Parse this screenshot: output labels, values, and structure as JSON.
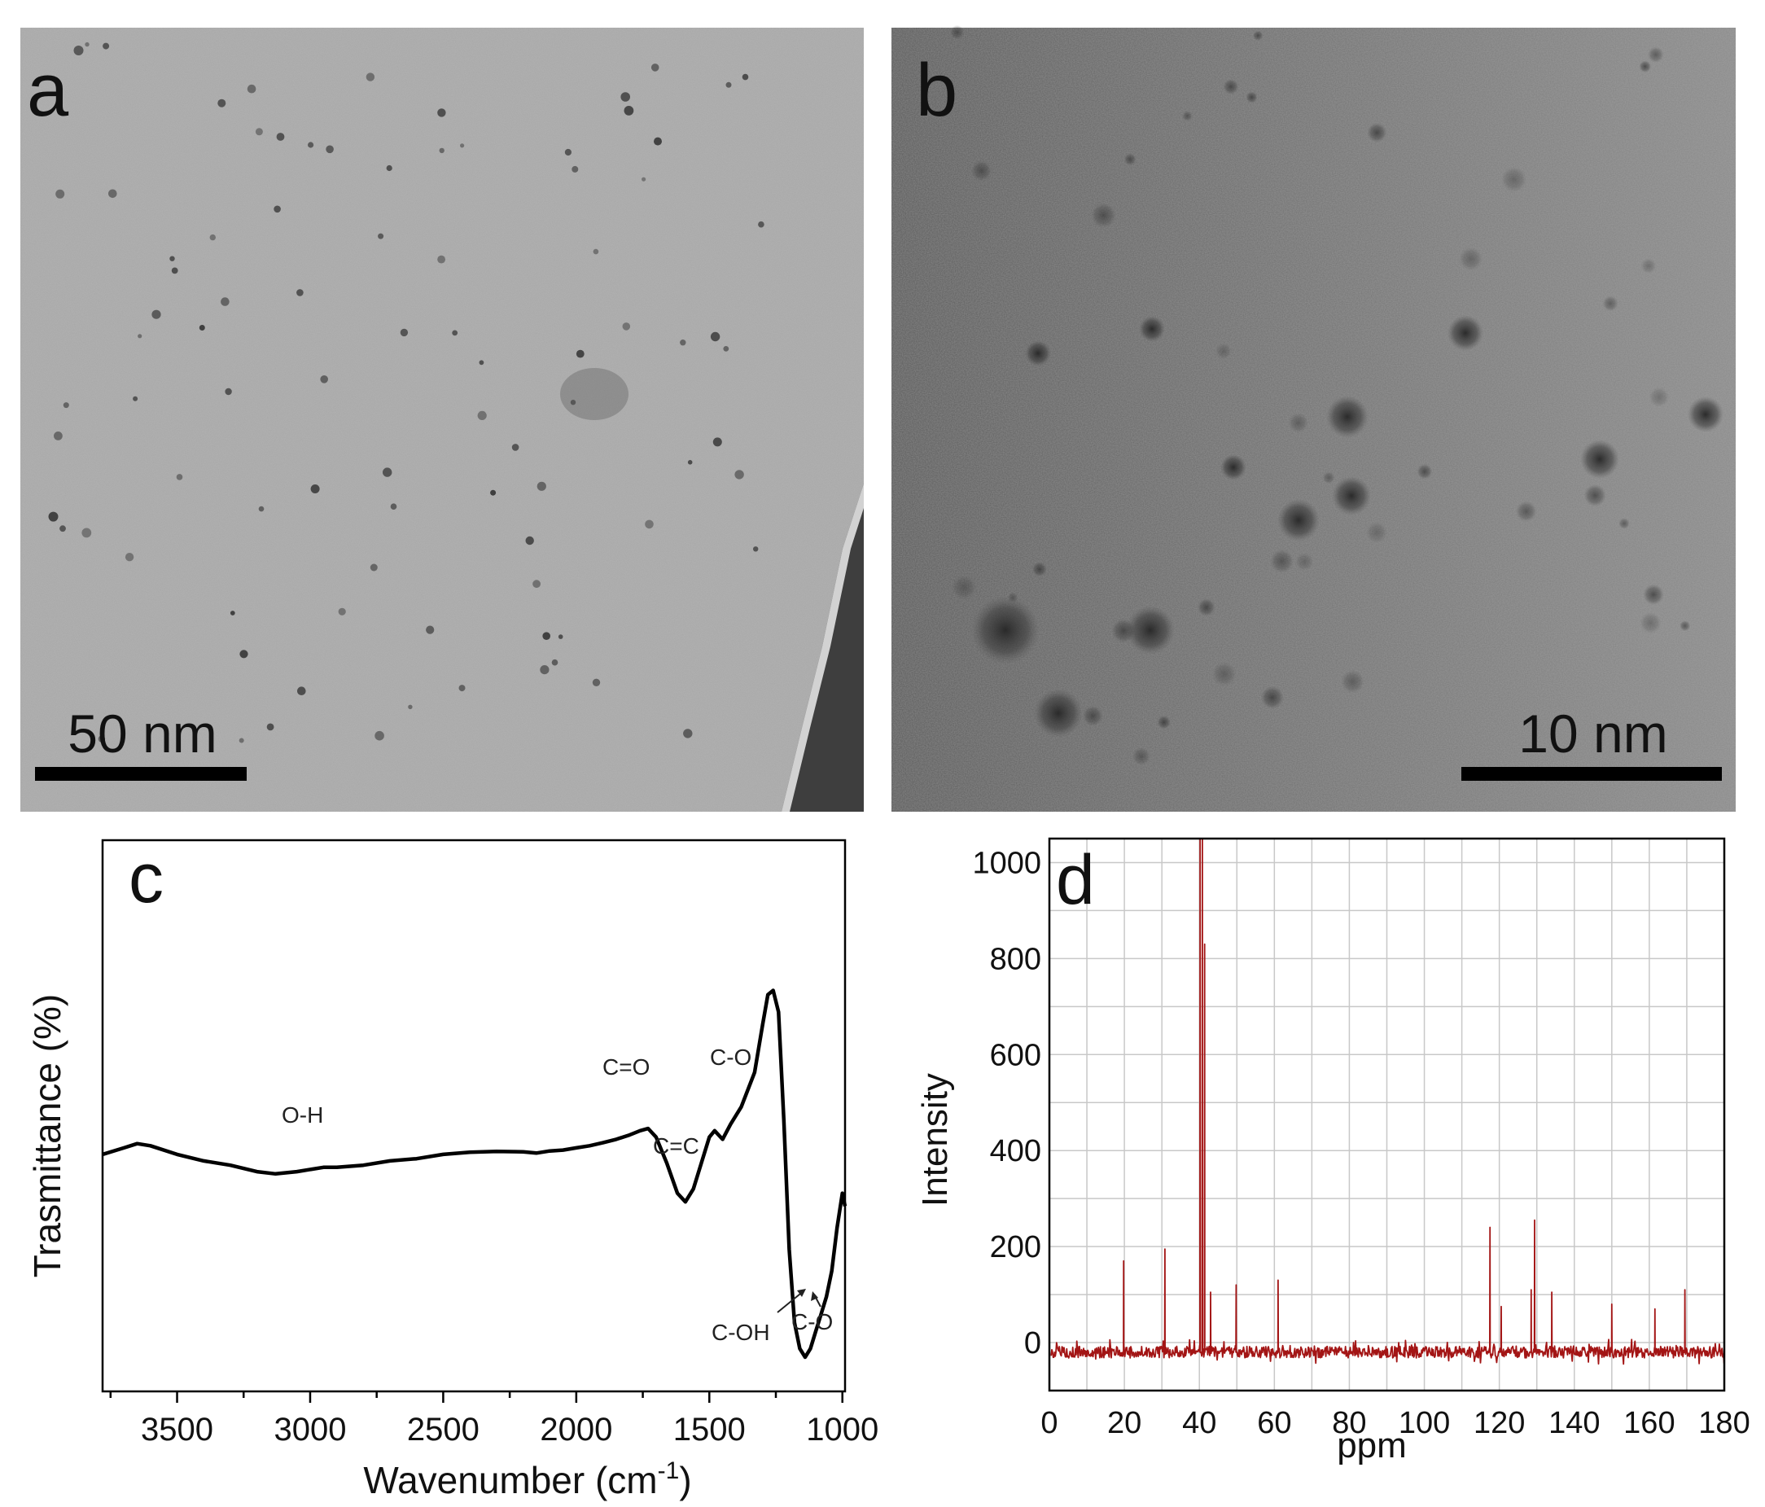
{
  "panels": {
    "a": {
      "letter": "a",
      "scale_label": "50 nm"
    },
    "b": {
      "letter": "b",
      "scale_label": "10 nm"
    },
    "c": {
      "letter": "c"
    },
    "d": {
      "letter": "d"
    }
  },
  "chart_data": [
    {
      "panel": "c",
      "type": "line",
      "title": "",
      "xlabel": "Wavenumber (cm",
      "xlabel_superscript": "-1",
      "xlabel_close": ")",
      "ylabel": "Trasmittance (%)",
      "xlim": [
        3780,
        990
      ],
      "x_reversed": true,
      "ylim": [
        0,
        100
      ],
      "y_ticks_shown": false,
      "grid": false,
      "x_ticks": [
        3500,
        3000,
        2500,
        2000,
        1500,
        1000
      ],
      "x_tick_labels": [
        "3500",
        "3000",
        "2500",
        "2000",
        "1500",
        "1000"
      ],
      "series": [
        {
          "color": "#000000",
          "x": [
            3780,
            3700,
            3650,
            3600,
            3500,
            3400,
            3300,
            3200,
            3130,
            3050,
            2950,
            2900,
            2800,
            2700,
            2600,
            2500,
            2400,
            2300,
            2200,
            2150,
            2100,
            2050,
            2000,
            1950,
            1900,
            1850,
            1800,
            1760,
            1730,
            1700,
            1660,
            1620,
            1590,
            1560,
            1530,
            1500,
            1480,
            1450,
            1420,
            1380,
            1330,
            1300,
            1280,
            1260,
            1240,
            1220,
            1200,
            1180,
            1160,
            1140,
            1120,
            1100,
            1080,
            1060,
            1040,
            1020,
            1000,
            990
          ],
          "y": [
            57,
            58.5,
            59.5,
            59,
            57,
            55.5,
            54.5,
            53,
            52.5,
            53,
            54,
            54,
            54.5,
            55.5,
            56,
            57,
            57.5,
            57.7,
            57.6,
            57.3,
            57.8,
            58,
            58.5,
            59,
            59.7,
            60.5,
            61.5,
            62.5,
            63,
            61,
            55,
            48,
            46,
            49,
            55,
            61,
            62.5,
            60.5,
            64,
            68,
            76,
            87,
            94,
            95,
            90,
            65,
            35,
            18,
            12,
            10,
            12,
            16,
            20,
            24,
            30,
            40,
            48,
            45
          ]
        }
      ],
      "annotations": [
        "O-H",
        "C=O",
        "C=C",
        "C-O",
        "C-OH",
        "C-O"
      ]
    },
    {
      "panel": "d",
      "type": "line",
      "title": "",
      "xlabel": "ppm",
      "ylabel": "Intensity",
      "xlim": [
        0,
        180
      ],
      "ylim": [
        -100,
        1050
      ],
      "grid": true,
      "x_ticks": [
        0,
        20,
        40,
        60,
        80,
        100,
        120,
        140,
        160,
        180
      ],
      "x_tick_labels": [
        "0",
        "20",
        "40",
        "60",
        "80",
        "100",
        "120",
        "140",
        "160",
        "180"
      ],
      "y_ticks": [
        0,
        200,
        400,
        600,
        800,
        1000
      ],
      "y_tick_labels": [
        "0",
        "200",
        "400",
        "600",
        "800",
        "1000"
      ],
      "series": [
        {
          "color": "#a31515",
          "baseline": -20,
          "noise": 12,
          "peaks": [
            {
              "x": 19.8,
              "y": 170
            },
            {
              "x": 30.8,
              "y": 195
            },
            {
              "x": 40.2,
              "y": 1050
            },
            {
              "x": 40.8,
              "y": 1050
            },
            {
              "x": 41.4,
              "y": 830
            },
            {
              "x": 43.0,
              "y": 105
            },
            {
              "x": 49.8,
              "y": 120
            },
            {
              "x": 61.0,
              "y": 130
            },
            {
              "x": 117.5,
              "y": 240
            },
            {
              "x": 120.5,
              "y": 75
            },
            {
              "x": 128.5,
              "y": 110
            },
            {
              "x": 129.4,
              "y": 255
            },
            {
              "x": 134.0,
              "y": 105
            },
            {
              "x": 150.0,
              "y": 80
            },
            {
              "x": 161.5,
              "y": 70
            },
            {
              "x": 169.5,
              "y": 110
            }
          ]
        }
      ]
    }
  ]
}
